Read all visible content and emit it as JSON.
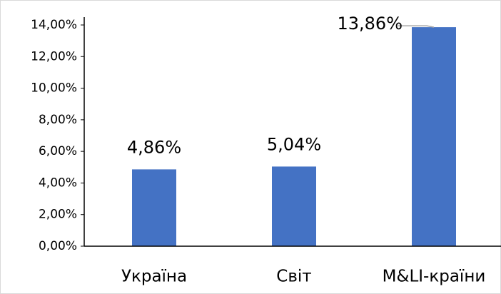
{
  "chart_data": {
    "type": "bar",
    "categories": [
      "Україна",
      "Світ",
      "M&LI-країни"
    ],
    "values": [
      4.86,
      5.04,
      13.86
    ],
    "value_labels": [
      "4,86%",
      "5,04%",
      "13,86%"
    ],
    "color": "#4472c4",
    "ylim": [
      0,
      14
    ],
    "yticks": [
      {
        "value": 0,
        "label": "0,00%"
      },
      {
        "value": 2,
        "label": "2,00%"
      },
      {
        "value": 4,
        "label": "4,00%"
      },
      {
        "value": 6,
        "label": "6,00%"
      },
      {
        "value": 8,
        "label": "8,00%"
      },
      {
        "value": 10,
        "label": "10,00%"
      },
      {
        "value": 12,
        "label": "12,00%"
      },
      {
        "value": 14,
        "label": "14,00%"
      }
    ],
    "grid": false
  }
}
